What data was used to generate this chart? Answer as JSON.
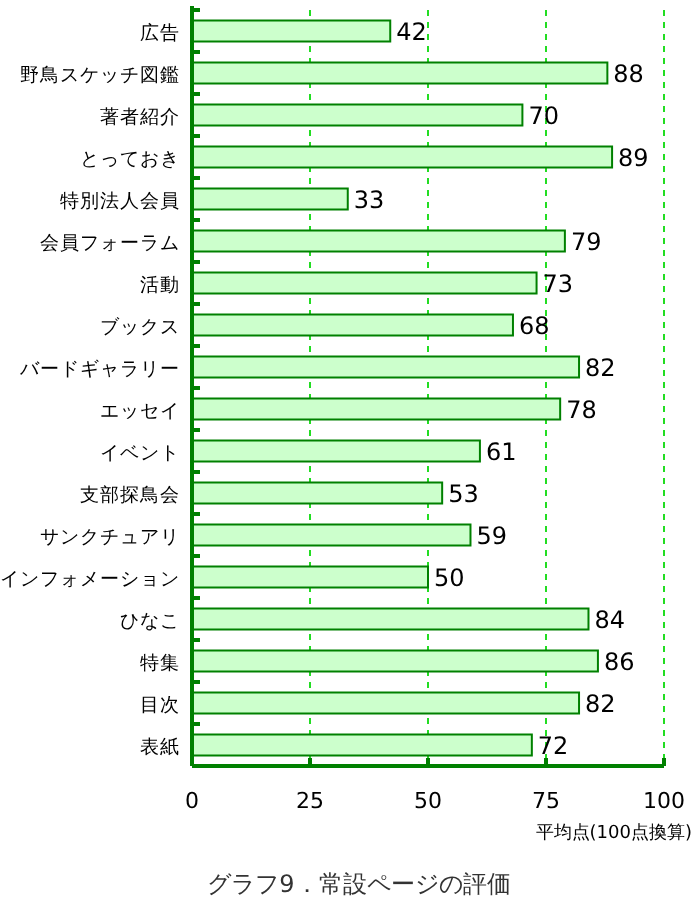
{
  "chart_data": {
    "type": "bar",
    "orientation": "horizontal",
    "title": "グラフ9．常設ページの評価",
    "xlabel": "平均点(100点換算)",
    "categories": [
      "広告",
      "野鳥スケッチ図鑑",
      "著者紹介",
      "とっておき",
      "特別法人会員",
      "会員フォーラム",
      "活動",
      "ブックス",
      "バードギャラリー",
      "エッセイ",
      "イベント",
      "支部探鳥会",
      "サンクチュアリ",
      "インフォメーション",
      "ひなこ",
      "特集",
      "目次",
      "表紙"
    ],
    "values": [
      42,
      88,
      70,
      89,
      33,
      79,
      73,
      68,
      82,
      78,
      61,
      53,
      59,
      50,
      84,
      86,
      82,
      72
    ],
    "color": "#ccffcc",
    "xlim": [
      0,
      100
    ],
    "xticks": [
      0,
      25,
      50,
      75,
      100
    ],
    "grid": "x",
    "data_labels": true
  }
}
